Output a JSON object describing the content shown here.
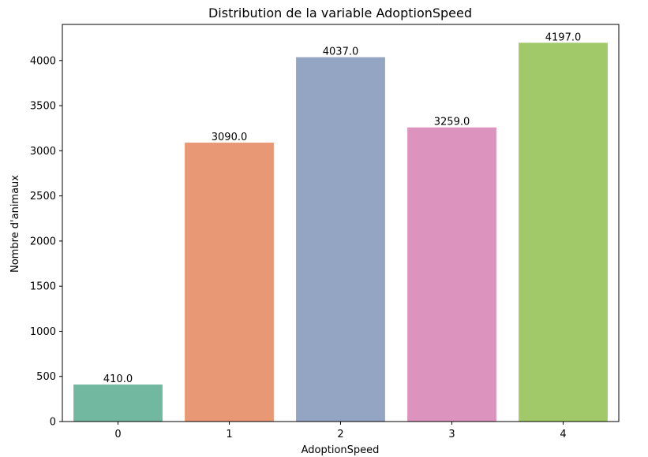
{
  "chart_data": {
    "type": "bar",
    "title": "Distribution de la variable AdoptionSpeed",
    "xlabel": "AdoptionSpeed",
    "ylabel": "Nombre d'animaux",
    "categories": [
      "0",
      "1",
      "2",
      "3",
      "4"
    ],
    "values": [
      410,
      3090,
      4037,
      3259,
      4197
    ],
    "value_labels": [
      "410.0",
      "3090.0",
      "4037.0",
      "3259.0",
      "4197.0"
    ],
    "colors": [
      "#72b8a1",
      "#e99876",
      "#94a4c3",
      "#dc94bf",
      "#a2c969"
    ],
    "ylim": [
      0,
      4400
    ],
    "yticks": [
      0,
      500,
      1000,
      1500,
      2000,
      2500,
      3000,
      3500,
      4000
    ],
    "grid": false,
    "legend": false
  }
}
